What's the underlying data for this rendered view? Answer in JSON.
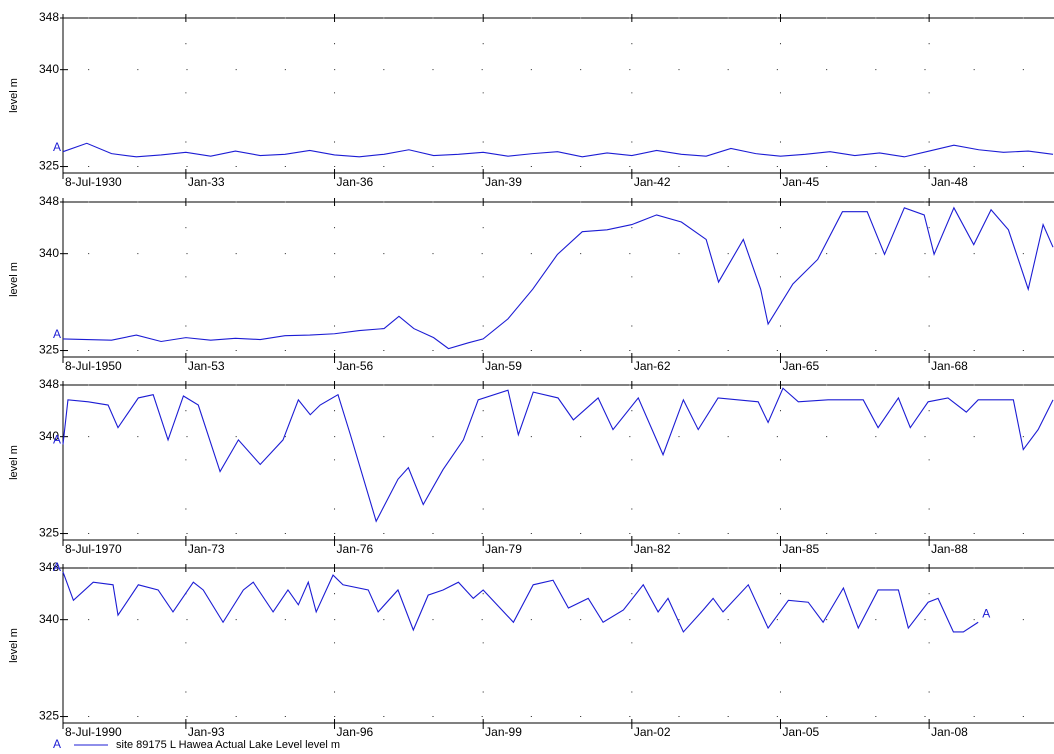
{
  "legend": {
    "symbol": "A",
    "label": "site 89175 L Hawea Actual Lake Level   level m"
  },
  "chart_data": [
    {
      "type": "line",
      "ylabel": "level m",
      "xlim": [
        1930.52,
        1950.52
      ],
      "ylim": [
        324,
        348
      ],
      "yticks": [
        325,
        340,
        348
      ],
      "grid": true,
      "xticks": [
        {
          "value": 1930.52,
          "label": "8-Jul-1930"
        },
        {
          "value": 1933,
          "label": "Jan-33"
        },
        {
          "value": 1936,
          "label": "Jan-36"
        },
        {
          "value": 1939,
          "label": "Jan-39"
        },
        {
          "value": 1942,
          "label": "Jan-42"
        },
        {
          "value": 1945,
          "label": "Jan-45"
        },
        {
          "value": 1948,
          "label": "Jan-48"
        }
      ],
      "x": [
        1930.52,
        1931,
        1931.5,
        1932,
        1932.5,
        1933,
        1933.5,
        1934,
        1934.5,
        1935,
        1935.5,
        1936,
        1936.5,
        1937,
        1937.5,
        1938,
        1938.5,
        1939,
        1939.5,
        1940,
        1940.5,
        1941,
        1941.5,
        1942,
        1942.5,
        1943,
        1943.5,
        1944,
        1944.5,
        1945,
        1945.5,
        1946,
        1946.5,
        1947,
        1947.5,
        1948,
        1948.5,
        1949,
        1949.5,
        1950,
        1950.5
      ],
      "series": [
        {
          "color": "#1c1cd4",
          "values": [
            327.3,
            328.6,
            327.0,
            326.5,
            326.8,
            327.2,
            326.6,
            327.4,
            326.7,
            326.9,
            327.5,
            326.8,
            326.5,
            326.9,
            327.6,
            326.7,
            326.9,
            327.2,
            326.6,
            327.0,
            327.3,
            326.5,
            327.1,
            326.7,
            327.5,
            326.9,
            326.6,
            327.8,
            327.0,
            326.6,
            326.9,
            327.3,
            326.7,
            327.1,
            326.5,
            327.4,
            328.3,
            327.6,
            327.2,
            327.4,
            326.9
          ]
        }
      ]
    },
    {
      "type": "line",
      "ylabel": "level m",
      "xlim": [
        1950.52,
        1970.52
      ],
      "ylim": [
        324,
        348
      ],
      "yticks": [
        325,
        340,
        348
      ],
      "grid": true,
      "xticks": [
        {
          "value": 1950.52,
          "label": "8-Jul-1950"
        },
        {
          "value": 1953,
          "label": "Jan-53"
        },
        {
          "value": 1956,
          "label": "Jan-56"
        },
        {
          "value": 1959,
          "label": "Jan-59"
        },
        {
          "value": 1962,
          "label": "Jan-62"
        },
        {
          "value": 1965,
          "label": "Jan-65"
        },
        {
          "value": 1968,
          "label": "Jan-68"
        }
      ],
      "x": [
        1950.52,
        1951,
        1951.5,
        1952,
        1952.5,
        1953,
        1953.5,
        1954,
        1954.5,
        1955,
        1955.5,
        1956,
        1956.5,
        1957,
        1957.3,
        1957.6,
        1958,
        1958.3,
        1958.7,
        1959,
        1959.5,
        1960,
        1960.5,
        1961,
        1961.5,
        1962,
        1962.5,
        1963,
        1963.5,
        1963.75,
        1964.25,
        1964.6,
        1964.75,
        1965.25,
        1965.75,
        1966.25,
        1966.75,
        1967.1,
        1967.5,
        1967.9,
        1968.1,
        1968.5,
        1968.9,
        1969.25,
        1969.6,
        1970,
        1970.3,
        1970.5
      ],
      "series": [
        {
          "color": "#1c1cd4",
          "values": [
            326.8,
            326.7,
            326.6,
            327.4,
            326.4,
            327.0,
            326.6,
            326.9,
            326.7,
            327.3,
            327.4,
            327.6,
            328.1,
            328.4,
            330.3,
            328.4,
            327.0,
            325.3,
            326.2,
            326.8,
            329.9,
            334.5,
            339.9,
            343.4,
            343.7,
            344.5,
            346.0,
            344.9,
            342.2,
            335.6,
            342.2,
            334.5,
            329.1,
            335.3,
            339.1,
            346.5,
            346.5,
            339.9,
            347.1,
            346.0,
            339.9,
            347.1,
            341.4,
            346.8,
            343.7,
            334.5,
            344.5,
            341.0
          ]
        }
      ]
    },
    {
      "type": "line",
      "ylabel": "level m",
      "xlim": [
        1970.52,
        1990.52
      ],
      "ylim": [
        324,
        348
      ],
      "yticks": [
        325,
        340,
        348
      ],
      "grid": true,
      "xticks": [
        {
          "value": 1970.52,
          "label": "8-Jul-1970"
        },
        {
          "value": 1973,
          "label": "Jan-73"
        },
        {
          "value": 1976,
          "label": "Jan-76"
        },
        {
          "value": 1979,
          "label": "Jan-79"
        },
        {
          "value": 1982,
          "label": "Jan-82"
        },
        {
          "value": 1985,
          "label": "Jan-85"
        },
        {
          "value": 1988,
          "label": "Jan-88"
        }
      ],
      "x": [
        1970.52,
        1970.62,
        1971.03,
        1971.43,
        1971.63,
        1972.04,
        1972.34,
        1972.64,
        1972.95,
        1973.25,
        1973.69,
        1974.06,
        1974.5,
        1974.96,
        1975.27,
        1975.51,
        1975.71,
        1976.07,
        1976.32,
        1976.84,
        1977.28,
        1977.49,
        1977.79,
        1978.19,
        1978.6,
        1978.9,
        1979.5,
        1979.71,
        1980.01,
        1980.51,
        1980.82,
        1981.32,
        1981.62,
        1982.13,
        1982.63,
        1983.04,
        1983.34,
        1983.74,
        1984.55,
        1984.75,
        1985.05,
        1985.36,
        1985.96,
        1986.67,
        1986.97,
        1987.38,
        1987.62,
        1987.98,
        1988.38,
        1988.75,
        1988.99,
        1989.7,
        1989.9,
        1990.2,
        1990.5
      ],
      "series": [
        {
          "color": "#1c1cd4",
          "values": [
            338.8,
            345.7,
            345.4,
            344.9,
            341.4,
            346,
            346.5,
            339.5,
            346.3,
            344.9,
            334.6,
            339.5,
            335.7,
            339.5,
            345.7,
            343.4,
            344.9,
            346.5,
            340.3,
            326.9,
            333.4,
            335.2,
            329.5,
            334.9,
            339.5,
            345.7,
            347.2,
            340.3,
            346.9,
            346,
            342.6,
            346,
            341.1,
            346,
            337.2,
            345.7,
            341.1,
            346,
            345.4,
            342.2,
            347.5,
            345.4,
            345.7,
            345.7,
            341.4,
            346,
            341.4,
            345.4,
            346,
            343.8,
            345.7,
            345.7,
            338,
            341.1,
            345.7
          ]
        }
      ]
    },
    {
      "type": "line",
      "ylabel": "level m",
      "xlim": [
        1990.52,
        2010.52
      ],
      "ylim": [
        324,
        348
      ],
      "yticks": [
        325,
        340,
        348
      ],
      "grid": true,
      "xticks": [
        {
          "value": 1990.52,
          "label": "8-Jul-1990"
        },
        {
          "value": 1993,
          "label": "Jan-93"
        },
        {
          "value": 1996,
          "label": "Jan-96"
        },
        {
          "value": 1999,
          "label": "Jan-99"
        },
        {
          "value": 2002,
          "label": "Jan-02"
        },
        {
          "value": 2005,
          "label": "Jan-05"
        },
        {
          "value": 2008,
          "label": "Jan-08"
        }
      ],
      "x": [
        1990.52,
        1990.73,
        1991.13,
        1991.53,
        1991.63,
        1992.04,
        1992.44,
        1992.74,
        1993.15,
        1993.35,
        1993.75,
        1994.16,
        1994.36,
        1994.76,
        1995.06,
        1995.27,
        1995.47,
        1995.63,
        1995.97,
        1996.17,
        1996.68,
        1996.88,
        1997.28,
        1997.59,
        1997.89,
        1998.19,
        1998.5,
        1998.8,
        1999,
        1999.61,
        2000.01,
        2000.41,
        2000.72,
        2001.12,
        2001.42,
        2001.83,
        2002.23,
        2002.53,
        2002.73,
        2003.04,
        2003.44,
        2003.64,
        2003.84,
        2004.35,
        2004.75,
        2005.16,
        2005.56,
        2005.86,
        2006.27,
        2006.57,
        2006.97,
        2007.38,
        2007.58,
        2007.98,
        2008.18,
        2008.49,
        2008.69,
        2008.99
      ],
      "series": [
        {
          "color": "#1c1cd4",
          "values": [
            347.4,
            343,
            345.8,
            345.4,
            340.7,
            345.4,
            344.6,
            341.2,
            345.8,
            344.6,
            339.6,
            344.6,
            345.8,
            341.2,
            344.6,
            342.3,
            345.8,
            341.2,
            346.9,
            345.4,
            344.6,
            341.2,
            344.6,
            338.4,
            343.8,
            344.6,
            345.8,
            343.3,
            344.6,
            339.6,
            345.4,
            346.1,
            341.8,
            343.3,
            339.6,
            341.5,
            345.4,
            341.2,
            343.3,
            338.1,
            341.5,
            343.3,
            341.2,
            345.4,
            338.7,
            343,
            342.7,
            339.6,
            344.9,
            338.7,
            344.6,
            344.6,
            338.7,
            342.7,
            343.3,
            338.1,
            338.1,
            339.6
          ]
        }
      ]
    }
  ]
}
